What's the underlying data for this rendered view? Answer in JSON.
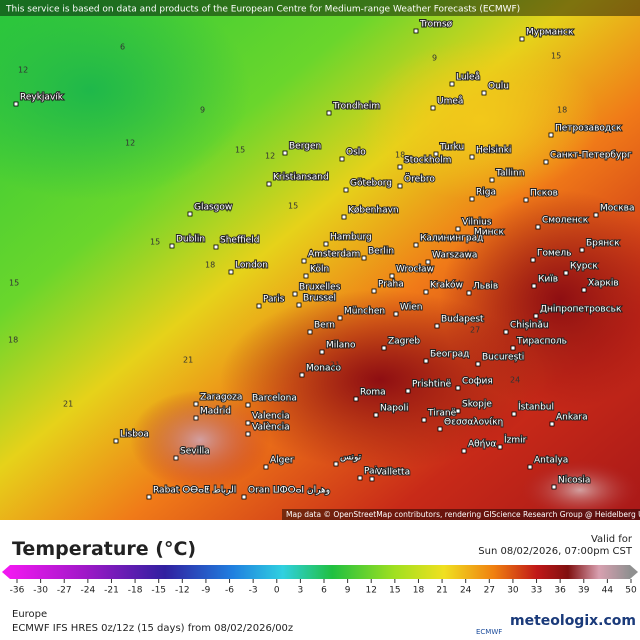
{
  "notice": "This service is based on data and products of the European Centre for Medium-range Weather Forecasts (ECMWF)",
  "attribution": "Map data © OpenStreetMap contributors, rendering GIScience Research Group @ Heidelberg University",
  "cities": [
    "Reykjavík",
    "Tromsø",
    "Мурманск",
    "Luleå",
    "Oulu",
    "Umeå",
    "Trondheim",
    "Петрозаводск",
    "Bergen",
    "Oslo",
    "Turku",
    "Helsinki",
    "Санкт-Петербург",
    "Stockholm",
    "Örebro",
    "Tallinn",
    "Kristiansand",
    "Göteborg",
    "Riga",
    "Псков",
    "Glasgow",
    "København",
    "Vilnius",
    "Смоленск",
    "Москва",
    "Dublin",
    "Sheffield",
    "Hamburg",
    "Минск",
    "Калининград",
    "Berlin",
    "Брянск",
    "Amsterdam",
    "Warszawa",
    "Гомель",
    "Курск",
    "London",
    "Köln",
    "Wrocław",
    "Київ",
    "Харків",
    "Bruxelles",
    "Brussel",
    "Praha",
    "Kraków",
    "Львів",
    "Paris",
    "München",
    "Wien",
    "Дніпропетровськ",
    "Bern",
    "Budapest",
    "Chișinău",
    "Zagreb",
    "Тирасполь",
    "Milano",
    "Београд",
    "București",
    "Monaco",
    "Prishtinë",
    "София",
    "Roma",
    "Skopje",
    "İstanbul",
    "Zaragoza",
    "Barcelona",
    "Madrid",
    "Napoli",
    "Tiranë",
    "Ankara",
    "Valencia",
    "València",
    "Lisboa",
    "Θεσσαλονίκη",
    "Αθήνα",
    "İzmir",
    "Sevilla",
    "Palermo",
    "Antalya",
    "Alger",
    "تونس",
    "Valletta",
    "Nicosia",
    "Rabat ⵔⴱⴰⵟ الرباط",
    "Oran ⵡⵀⵔⴰⵏ وهران"
  ],
  "isotherm_labels": [
    6,
    9,
    12,
    12,
    15,
    15,
    18,
    21,
    21,
    15,
    18,
    9,
    15,
    18,
    18,
    12,
    15,
    21,
    24,
    27
  ],
  "legend": {
    "title": "Temperature (°C)",
    "valid_label": "Valid for",
    "valid_time": "Sun 08/02/2026, 07:00pm CST",
    "ticks": [
      -36,
      -30,
      -27,
      -24,
      -21,
      -18,
      -15,
      -12,
      -9,
      -6,
      -3,
      0,
      3,
      6,
      9,
      12,
      15,
      18,
      21,
      24,
      27,
      30,
      33,
      36,
      39,
      44,
      50
    ]
  },
  "footer": {
    "region": "Europe",
    "model": "ECMWF IFS HRES 0z/12z (15 days) from 08/02/2026/00z",
    "ecmwf": "ECMWF",
    "brand": "meteologix.com"
  }
}
